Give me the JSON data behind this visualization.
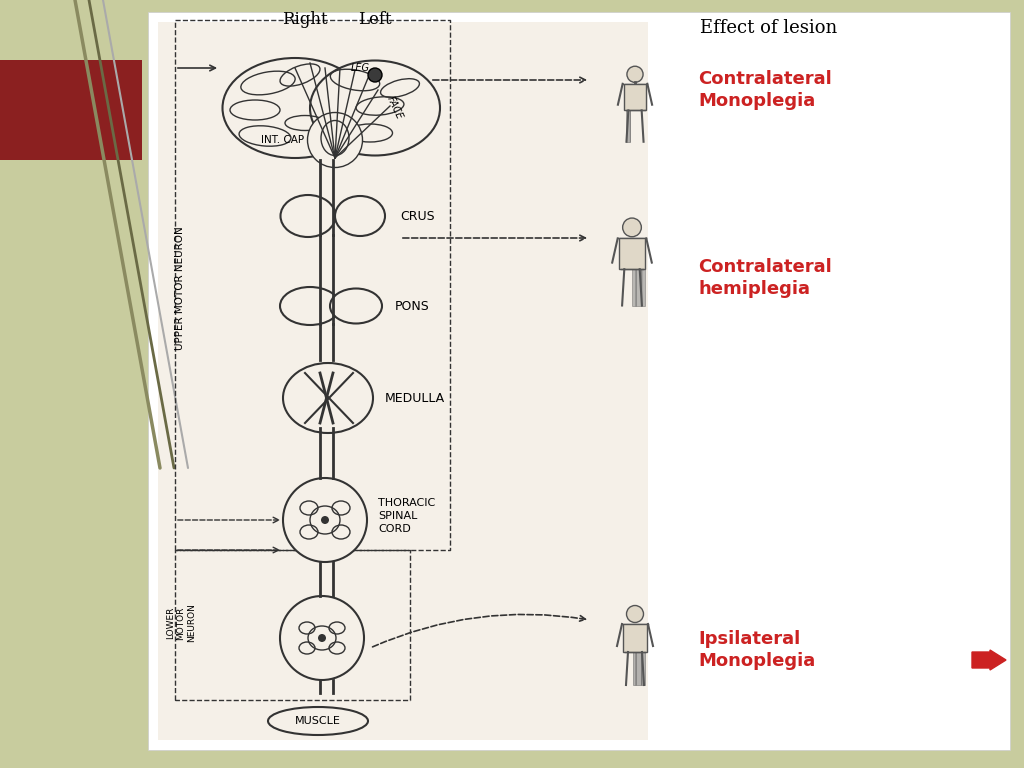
{
  "bg_color": "#c8cc9e",
  "slide_bg": "#f5f0e8",
  "title_effect_of_lesion": "Effect of lesion",
  "title_right": "Right",
  "title_left": "Left",
  "label_contralateral_monoplegia": "Contralateral\nMonoplegia",
  "label_contralateral_hemiplegia": "Contralateral\nhemiplegia",
  "label_ipsilateral_monoplegia": "Ipsilateral\nMonoplegia",
  "label_upper_motor_neuron": "UPPER MOTOR NEURON",
  "label_lower_motor_neuron": "LOWER\nMOTOR\nNEURON",
  "label_int_cap": "INT. CAP",
  "label_crus": "CRUS",
  "label_pons": "PONS",
  "label_medulla": "MEDULLA",
  "label_thoracic_spinal_cord": "THORACIC\nSPINAL\nCORD",
  "label_muscle": "MUSCLE",
  "label_leg": "LEG",
  "label_face": "FACE",
  "red_color": "#cc2222",
  "dark_red_rect": "#8b2020",
  "line_color": "#333333",
  "slide_bg_body": "#e8e0d0"
}
